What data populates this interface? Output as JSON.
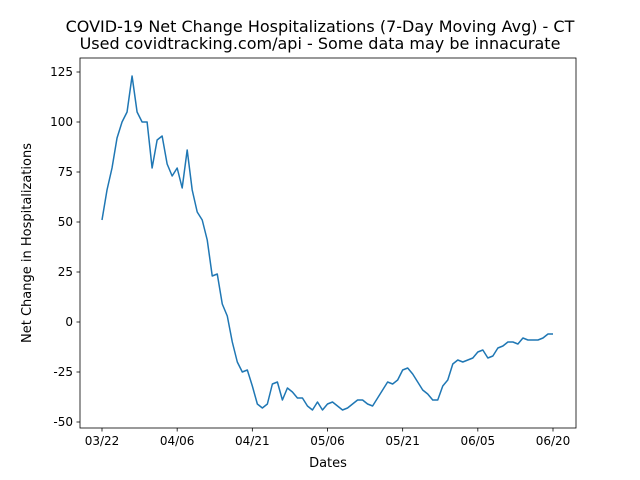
{
  "chart_data": {
    "type": "line",
    "title": "COVID-19 Net Change Hospitalizations (7-Day Moving Avg) - CT",
    "subtitle": "Used covidtracking.com/api - Some data may be innacurate",
    "xlabel": "Dates",
    "ylabel": "Net Change in Hospitalizations",
    "ylim": [
      -53,
      132
    ],
    "xticks": [
      "03/22",
      "04/06",
      "04/21",
      "05/06",
      "05/21",
      "06/05",
      "06/20"
    ],
    "yticks": [
      -50,
      -25,
      0,
      25,
      50,
      75,
      100,
      125
    ],
    "grid": false,
    "line_color": "#1f77b4",
    "series": [
      {
        "x": [
          "03/22",
          "03/23",
          "03/24",
          "03/25",
          "03/26",
          "03/27",
          "03/28",
          "03/29",
          "03/30",
          "03/31",
          "04/01",
          "04/02",
          "04/03",
          "04/04",
          "04/05",
          "04/06",
          "04/07",
          "04/08",
          "04/09",
          "04/10",
          "04/11",
          "04/12",
          "04/13",
          "04/14",
          "04/15",
          "04/16",
          "04/17",
          "04/18",
          "04/19",
          "04/20",
          "04/21",
          "04/22",
          "04/23",
          "04/24",
          "04/25",
          "04/26",
          "04/27",
          "04/28",
          "04/29",
          "04/30",
          "05/01",
          "05/02",
          "05/03",
          "05/04",
          "05/05",
          "05/06",
          "05/07",
          "05/08",
          "05/09",
          "05/10",
          "05/11",
          "05/12",
          "05/13",
          "05/14",
          "05/15",
          "05/16",
          "05/17",
          "05/18",
          "05/19",
          "05/20",
          "05/21",
          "05/22",
          "05/23",
          "05/24",
          "05/25",
          "05/26",
          "05/27",
          "05/28",
          "05/29",
          "05/30",
          "05/31",
          "06/01",
          "06/02",
          "06/03",
          "06/04",
          "06/05",
          "06/06",
          "06/07",
          "06/08",
          "06/09",
          "06/10",
          "06/11",
          "06/12",
          "06/13",
          "06/14",
          "06/15",
          "06/16",
          "06/17",
          "06/18",
          "06/19",
          "06/20"
        ],
        "values": [
          51,
          66,
          77,
          92,
          100,
          105,
          123,
          105,
          100,
          100,
          77,
          91,
          93,
          79,
          73,
          77,
          67,
          86,
          66,
          55,
          51,
          41,
          23,
          24,
          9,
          3,
          -10,
          -20,
          -25,
          -24,
          -32,
          -41,
          -43,
          -41,
          -31,
          -30,
          -39,
          -33,
          -35,
          -38,
          -38,
          -42,
          -44,
          -40,
          -44,
          -41,
          -40,
          -42,
          -44,
          -43,
          -41,
          -39,
          -39,
          -41,
          -42,
          -38,
          -34,
          -30,
          -31,
          -29,
          -24,
          -23,
          -26,
          -30,
          -34,
          -36,
          -39,
          -39,
          -32,
          -29,
          -21,
          -19,
          -20,
          -19,
          -18,
          -15,
          -14,
          -18,
          -17,
          -13,
          -12,
          -10,
          -10,
          -11,
          -8,
          -9,
          -9,
          -9,
          -8,
          -6,
          -6
        ]
      }
    ]
  }
}
